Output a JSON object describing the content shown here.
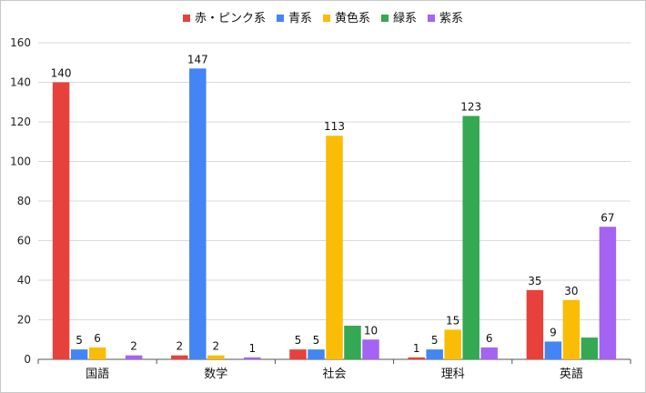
{
  "chart_data": {
    "type": "bar",
    "categories": [
      "国語",
      "数学",
      "社会",
      "理科",
      "英語"
    ],
    "series": [
      {
        "name": "赤・ピンク系",
        "color": "#e8413c",
        "values": [
          140,
          2,
          5,
          1,
          35
        ]
      },
      {
        "name": "青系",
        "color": "#4385f4",
        "values": [
          5,
          147,
          5,
          5,
          9
        ]
      },
      {
        "name": "黄色系",
        "color": "#fbbc05",
        "values": [
          6,
          2,
          113,
          15,
          30
        ]
      },
      {
        "name": "緑系",
        "color": "#34a852",
        "values": [
          null,
          null,
          17,
          123,
          11
        ]
      },
      {
        "name": "紫系",
        "color": "#a463f2",
        "values": [
          2,
          1,
          10,
          6,
          67
        ]
      }
    ],
    "data_labels": [
      [
        "140",
        "5",
        "6",
        "",
        "2"
      ],
      [
        "2",
        "147",
        "2",
        "",
        "1"
      ],
      [
        "5",
        "5",
        "113",
        "",
        "10"
      ],
      [
        "1",
        "5",
        "15",
        "123",
        "6"
      ],
      [
        "35",
        "9",
        "30",
        "",
        "67"
      ]
    ],
    "y_ticks": [
      "0",
      "20",
      "40",
      "60",
      "80",
      "100",
      "120",
      "140",
      "160"
    ],
    "ylim": [
      0,
      160
    ],
    "grid": true,
    "legend_position": "top-center"
  }
}
